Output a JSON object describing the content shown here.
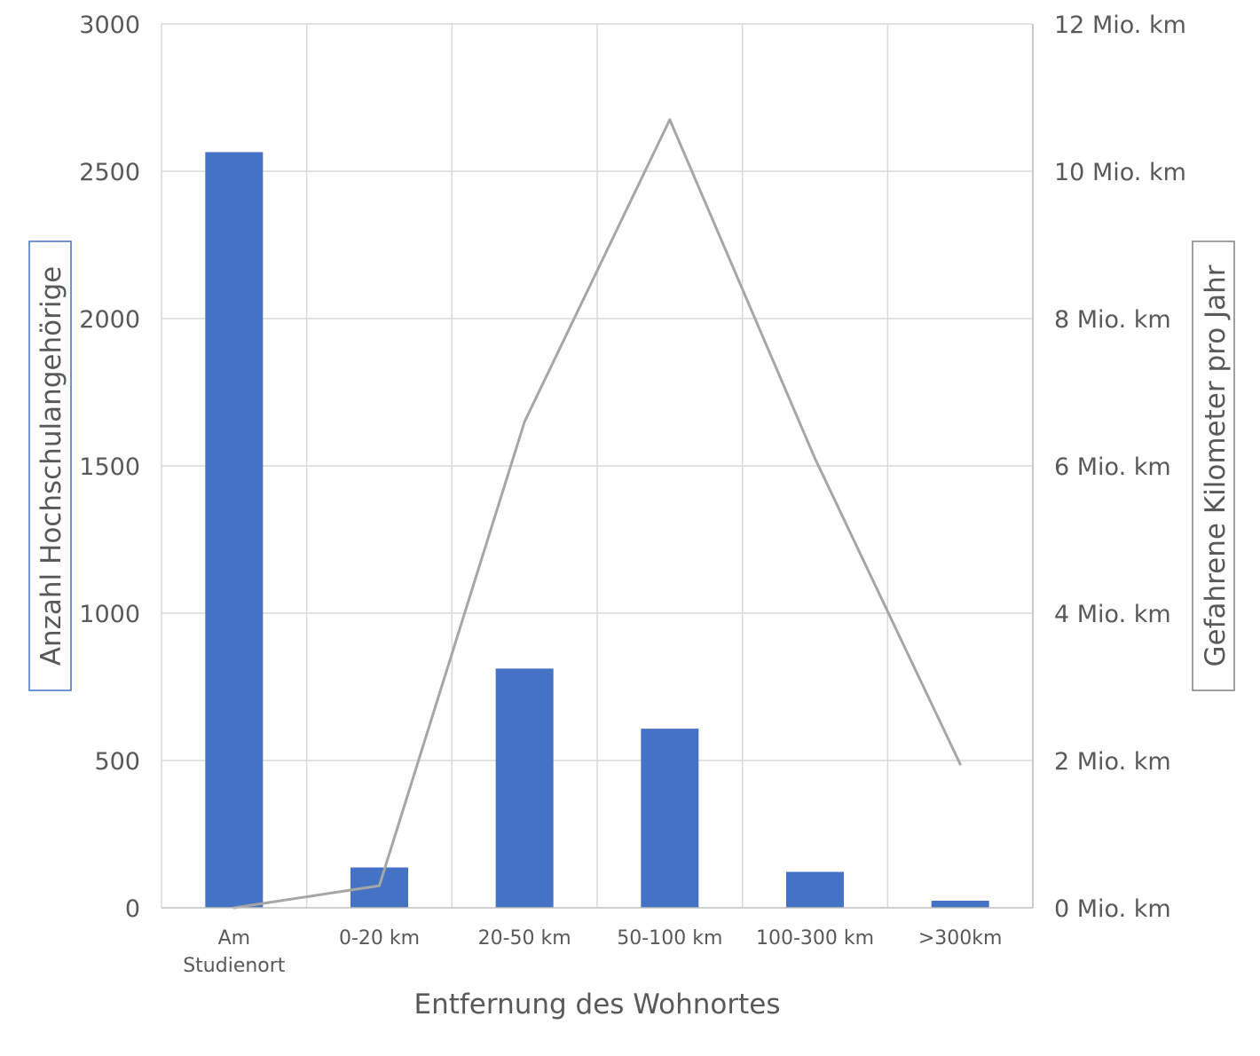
{
  "chart_data": {
    "type": "bar",
    "categories": [
      [
        "Am",
        "Studienort"
      ],
      [
        "0-20 km"
      ],
      [
        "20-50 km"
      ],
      [
        "50-100 km"
      ],
      [
        "100-300 km"
      ],
      [
        ">300km"
      ]
    ],
    "series": [
      {
        "type": "bar",
        "axis": "left",
        "color": "#4472c4",
        "values": [
          2565,
          137,
          812,
          608,
          122,
          24
        ]
      },
      {
        "type": "line",
        "axis": "right",
        "color": "#a6a6a6",
        "values": [
          0,
          0.3,
          6.6,
          10.7,
          6.1,
          1.95
        ]
      }
    ],
    "xlabel": "Entfernung des Wohnortes",
    "ylabel": "Anzahl Hochschulangehörige",
    "y2label": "Gefahrene Kilometer pro Jahr",
    "ylim": [
      0,
      3000
    ],
    "y2lim": [
      0,
      12
    ],
    "yticks": [
      "0",
      "500",
      "1000",
      "1500",
      "2000",
      "2500",
      "3000"
    ],
    "y2ticks": [
      "0 Mio. km",
      "2 Mio. km",
      "4 Mio. km",
      "6 Mio. km",
      "8 Mio. km",
      "10 Mio. km",
      "12 Mio. km"
    ],
    "ylabel_border_color": "#4472c4",
    "y2label_border_color": "#808080",
    "grid": true
  }
}
